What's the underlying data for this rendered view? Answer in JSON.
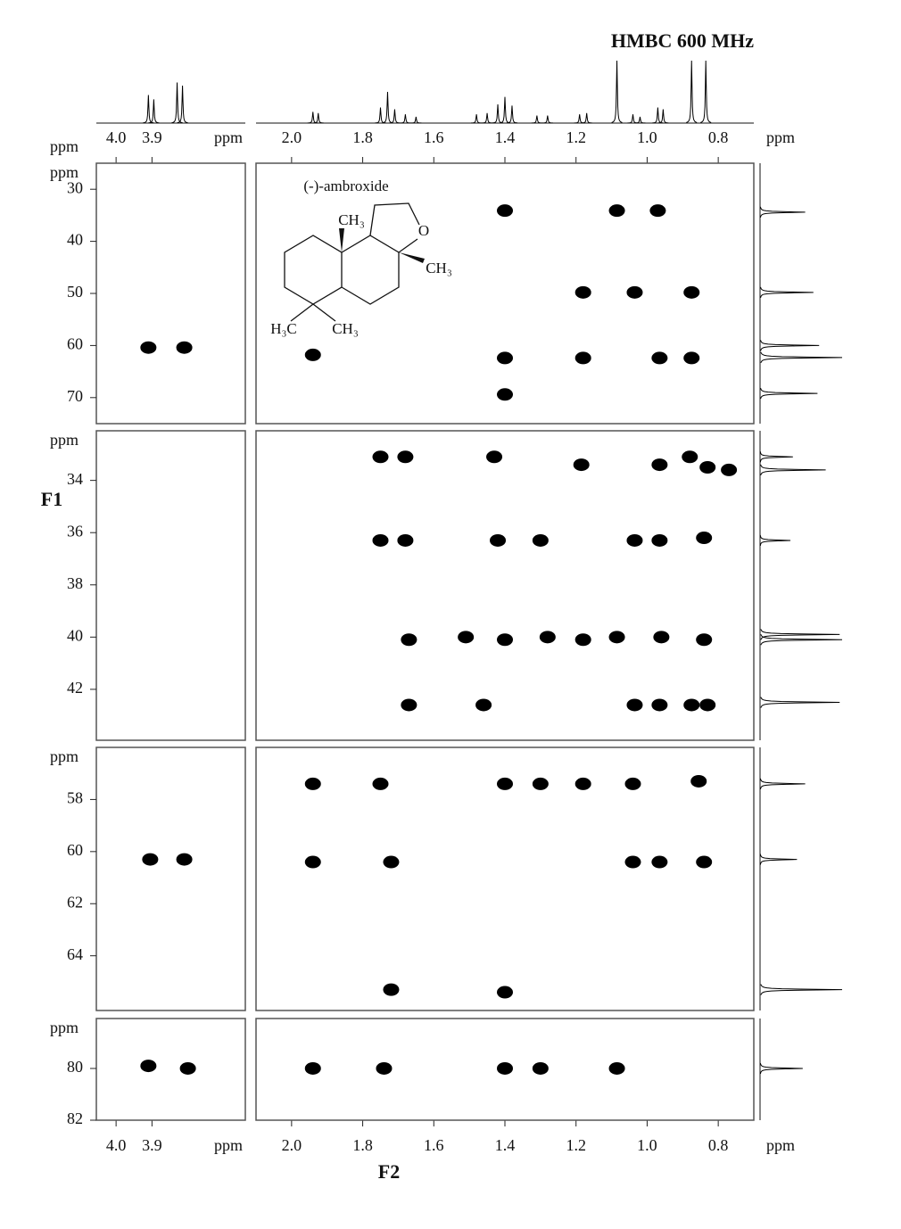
{
  "chart_data": {
    "type": "hmbc",
    "title": "HMBC 600 MHz",
    "x_label": "F2",
    "y_label": "F1",
    "unit": "ppm",
    "color": "#000000",
    "structure": {
      "name": "(-)-ambroxide",
      "labels": [
        "CH₃",
        "O",
        "CH₃",
        "H₃C",
        "CH₃"
      ]
    },
    "columns": [
      {
        "xlim": [
          4.055,
          3.64
        ],
        "xticks": [
          {
            "value": 4.0,
            "label": "4.0"
          },
          3.9
        ]
      },
      {
        "xlim": [
          2.1,
          0.7
        ],
        "xticks": [
          {
            "value": 2.0,
            "label": "2.0"
          },
          1.8,
          1.6,
          1.4,
          1.2,
          {
            "value": 1.0,
            "label": "1.0"
          },
          0.8
        ]
      }
    ],
    "proton_spectrum": {
      "ppm": [
        3.91,
        3.895,
        3.83,
        3.815,
        1.94,
        1.925,
        1.75,
        1.73,
        1.71,
        1.68,
        1.65,
        1.48,
        1.45,
        1.42,
        1.4,
        1.38,
        1.31,
        1.28,
        1.19,
        1.17,
        1.085,
        1.04,
        1.02,
        0.97,
        0.955,
        0.875,
        0.835
      ],
      "height": [
        45,
        38,
        65,
        60,
        18,
        16,
        25,
        50,
        22,
        14,
        10,
        14,
        16,
        30,
        42,
        28,
        12,
        12,
        14,
        16,
        100,
        14,
        10,
        25,
        22,
        100,
        100
      ]
    },
    "rows": [
      {
        "ylim": [
          25,
          75
        ],
        "yticks": [
          30,
          40,
          50,
          60,
          70
        ],
        "left_peaks": {
          "x": [
            3.91,
            3.81
          ],
          "y": [
            60.4,
            60.4
          ]
        },
        "peaks": {
          "x": [
            1.4,
            1.085,
            0.97,
            1.18,
            1.035,
            0.875,
            1.94,
            1.4,
            1.18,
            0.965,
            0.875,
            1.4
          ],
          "y": [
            34.1,
            34.1,
            34.1,
            49.8,
            49.8,
            49.8,
            61.8,
            62.4,
            62.4,
            62.4,
            62.4,
            69.4
          ]
        },
        "carbon": {
          "ppm": [
            34.4,
            49.8,
            60.0,
            62.3,
            69.2
          ],
          "height": [
            55,
            65,
            72,
            100,
            70
          ]
        }
      },
      {
        "ylim": [
          32.1,
          43.95
        ],
        "yticks": [
          34,
          36,
          38,
          40,
          42
        ],
        "left_peaks": {
          "x": [],
          "y": []
        },
        "peaks": {
          "x": [
            1.75,
            1.68,
            1.43,
            1.185,
            0.965,
            0.88,
            0.83,
            0.77,
            1.75,
            1.68,
            1.42,
            1.3,
            1.035,
            0.965,
            0.84,
            1.67,
            1.51,
            1.4,
            1.28,
            1.18,
            1.085,
            0.96,
            0.84,
            1.67,
            1.46,
            1.035,
            0.965,
            0.875,
            0.83
          ],
          "y": [
            33.1,
            33.1,
            33.1,
            33.4,
            33.4,
            33.1,
            33.5,
            33.6,
            36.3,
            36.3,
            36.3,
            36.3,
            36.3,
            36.3,
            36.2,
            40.1,
            40.0,
            40.1,
            40.0,
            40.1,
            40.0,
            40.0,
            40.1,
            42.6,
            42.6,
            42.6,
            42.6,
            42.6,
            42.6
          ]
        },
        "carbon": {
          "ppm": [
            33.1,
            33.6,
            36.3,
            39.9,
            40.1,
            42.5
          ],
          "height": [
            40,
            80,
            37,
            97,
            100,
            97
          ]
        }
      },
      {
        "ylim": [
          56.0,
          66.1
        ],
        "yticks": [
          58,
          60,
          62,
          64
        ],
        "left_peaks": {
          "x": [
            3.905,
            3.81
          ],
          "y": [
            60.3,
            60.3
          ]
        },
        "peaks": {
          "x": [
            1.94,
            1.75,
            1.4,
            1.3,
            1.18,
            1.04,
            0.855,
            1.94,
            1.72,
            1.04,
            0.965,
            0.84,
            1.72,
            1.4
          ],
          "y": [
            57.4,
            57.4,
            57.4,
            57.4,
            57.4,
            57.4,
            57.3,
            60.4,
            60.4,
            60.4,
            60.4,
            60.4,
            65.3,
            65.4
          ]
        },
        "carbon": {
          "ppm": [
            57.4,
            60.3,
            65.3
          ],
          "height": [
            55,
            45,
            100
          ]
        }
      },
      {
        "ylim": [
          78.07,
          82
        ],
        "yticks": [
          80,
          82
        ],
        "left_peaks": {
          "x": [
            3.91,
            3.8
          ],
          "y": [
            79.9,
            80.0
          ]
        },
        "peaks": {
          "x": [
            1.94,
            1.74,
            1.4,
            1.3,
            1.085
          ],
          "y": [
            80.0,
            80.0,
            80.0,
            80.0,
            80.0
          ]
        },
        "carbon": {
          "ppm": [
            80.0
          ],
          "height": [
            52
          ]
        }
      }
    ]
  }
}
